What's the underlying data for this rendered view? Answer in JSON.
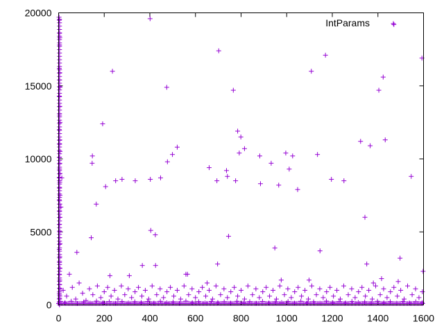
{
  "chart_data": {
    "type": "scatter",
    "title": "",
    "xlabel": "",
    "ylabel": "",
    "xlim": [
      0,
      1600
    ],
    "ylim": [
      0,
      20000
    ],
    "x_ticks": [
      0,
      200,
      400,
      600,
      800,
      1000,
      1200,
      1400,
      1600
    ],
    "y_ticks": [
      0,
      5000,
      10000,
      15000,
      20000
    ],
    "grid": false,
    "legend_position": "top-right",
    "marker": "+",
    "series": [
      {
        "name": "IntParams",
        "color": "#9400d3",
        "points": [
          [
            2,
            19700
          ],
          [
            3,
            19500
          ],
          [
            4,
            18600
          ],
          [
            5,
            18300
          ],
          [
            4,
            17800
          ],
          [
            3,
            16200
          ],
          [
            5,
            15900
          ],
          [
            4,
            15400
          ],
          [
            6,
            14900
          ],
          [
            3,
            14300
          ],
          [
            5,
            13600
          ],
          [
            4,
            13000
          ],
          [
            6,
            12500
          ],
          [
            3,
            12000
          ],
          [
            5,
            11300
          ],
          [
            4,
            11000
          ],
          [
            6,
            10500
          ],
          [
            3,
            10100
          ],
          [
            5,
            9700
          ],
          [
            4,
            9300
          ],
          [
            6,
            9000
          ],
          [
            3,
            8700
          ],
          [
            5,
            8400
          ],
          [
            4,
            8000
          ],
          [
            6,
            7500
          ],
          [
            3,
            7200
          ],
          [
            5,
            6900
          ],
          [
            4,
            6400
          ],
          [
            6,
            6000
          ],
          [
            3,
            5500
          ],
          [
            5,
            5000
          ],
          [
            4,
            4600
          ],
          [
            6,
            4200
          ],
          [
            3,
            3800
          ],
          [
            5,
            3300
          ],
          [
            4,
            2900
          ],
          [
            6,
            2500
          ],
          [
            3,
            2100
          ],
          [
            5,
            1700
          ],
          [
            4,
            1400
          ],
          [
            6,
            1100
          ],
          [
            3,
            800
          ],
          [
            5,
            600
          ],
          [
            4,
            400
          ],
          [
            6,
            250
          ],
          [
            3,
            150
          ],
          [
            5,
            80
          ],
          [
            10,
            6700
          ],
          [
            14,
            8700
          ],
          [
            47,
            2100
          ],
          [
            80,
            3600
          ],
          [
            143,
            4600
          ],
          [
            148,
            10200
          ],
          [
            147,
            9700
          ],
          [
            165,
            6900
          ],
          [
            193,
            12400
          ],
          [
            206,
            8100
          ],
          [
            225,
            2000
          ],
          [
            236,
            16000
          ],
          [
            250,
            8500
          ],
          [
            278,
            8600
          ],
          [
            310,
            2000
          ],
          [
            336,
            8500
          ],
          [
            367,
            2700
          ],
          [
            401,
            19600
          ],
          [
            402,
            8600
          ],
          [
            404,
            5100
          ],
          [
            424,
            4800
          ],
          [
            425,
            2700
          ],
          [
            447,
            8700
          ],
          [
            474,
            14900
          ],
          [
            477,
            9800
          ],
          [
            499,
            10300
          ],
          [
            520,
            10800
          ],
          [
            558,
            2100
          ],
          [
            565,
            2100
          ],
          [
            651,
            1500
          ],
          [
            660,
            9400
          ],
          [
            694,
            8500
          ],
          [
            697,
            2800
          ],
          [
            702,
            17400
          ],
          [
            736,
            9200
          ],
          [
            740,
            8800
          ],
          [
            745,
            4700
          ],
          [
            766,
            14700
          ],
          [
            776,
            8500
          ],
          [
            785,
            11900
          ],
          [
            792,
            10400
          ],
          [
            799,
            11500
          ],
          [
            815,
            10700
          ],
          [
            882,
            10200
          ],
          [
            885,
            8300
          ],
          [
            932,
            9700
          ],
          [
            948,
            3900
          ],
          [
            965,
            8200
          ],
          [
            976,
            1700
          ],
          [
            996,
            10400
          ],
          [
            1011,
            9300
          ],
          [
            1026,
            10200
          ],
          [
            1048,
            7900
          ],
          [
            1098,
            1700
          ],
          [
            1108,
            16000
          ],
          [
            1135,
            10300
          ],
          [
            1146,
            3700
          ],
          [
            1170,
            17100
          ],
          [
            1196,
            8600
          ],
          [
            1251,
            8500
          ],
          [
            1324,
            11200
          ],
          [
            1343,
            6000
          ],
          [
            1351,
            2800
          ],
          [
            1366,
            10900
          ],
          [
            1380,
            1500
          ],
          [
            1404,
            14700
          ],
          [
            1416,
            1800
          ],
          [
            1423,
            15600
          ],
          [
            1432,
            11300
          ],
          [
            1470,
            19200
          ],
          [
            1489,
            1600
          ],
          [
            1497,
            3200
          ],
          [
            1546,
            8800
          ],
          [
            1593,
            16900
          ],
          [
            1598,
            2300
          ],
          [
            20,
            1000
          ],
          [
            35,
            600
          ],
          [
            60,
            1200
          ],
          [
            75,
            400
          ],
          [
            90,
            1500
          ],
          [
            105,
            800
          ],
          [
            120,
            300
          ],
          [
            135,
            1100
          ],
          [
            150,
            700
          ],
          [
            170,
            1300
          ],
          [
            185,
            500
          ],
          [
            200,
            900
          ],
          [
            215,
            1200
          ],
          [
            230,
            600
          ],
          [
            245,
            1000
          ],
          [
            260,
            400
          ],
          [
            275,
            1300
          ],
          [
            290,
            700
          ],
          [
            305,
            1100
          ],
          [
            320,
            500
          ],
          [
            335,
            900
          ],
          [
            350,
            1200
          ],
          [
            365,
            600
          ],
          [
            380,
            1000
          ],
          [
            395,
            400
          ],
          [
            410,
            1300
          ],
          [
            430,
            700
          ],
          [
            445,
            1100
          ],
          [
            460,
            500
          ],
          [
            475,
            900
          ],
          [
            490,
            1200
          ],
          [
            505,
            600
          ],
          [
            520,
            1000
          ],
          [
            535,
            400
          ],
          [
            550,
            1300
          ],
          [
            570,
            700
          ],
          [
            585,
            1100
          ],
          [
            600,
            500
          ],
          [
            615,
            900
          ],
          [
            630,
            1200
          ],
          [
            645,
            600
          ],
          [
            660,
            1000
          ],
          [
            675,
            400
          ],
          [
            690,
            1300
          ],
          [
            710,
            700
          ],
          [
            725,
            1100
          ],
          [
            740,
            500
          ],
          [
            755,
            900
          ],
          [
            770,
            1200
          ],
          [
            785,
            600
          ],
          [
            800,
            1000
          ],
          [
            815,
            400
          ],
          [
            830,
            1300
          ],
          [
            850,
            700
          ],
          [
            865,
            1100
          ],
          [
            880,
            500
          ],
          [
            895,
            900
          ],
          [
            910,
            1200
          ],
          [
            925,
            600
          ],
          [
            940,
            1000
          ],
          [
            955,
            400
          ],
          [
            970,
            1300
          ],
          [
            990,
            700
          ],
          [
            1005,
            1100
          ],
          [
            1020,
            500
          ],
          [
            1035,
            900
          ],
          [
            1050,
            1200
          ],
          [
            1065,
            600
          ],
          [
            1080,
            1000
          ],
          [
            1095,
            400
          ],
          [
            1110,
            1300
          ],
          [
            1130,
            700
          ],
          [
            1145,
            1100
          ],
          [
            1160,
            500
          ],
          [
            1175,
            900
          ],
          [
            1190,
            1200
          ],
          [
            1205,
            600
          ],
          [
            1220,
            1000
          ],
          [
            1235,
            400
          ],
          [
            1250,
            1300
          ],
          [
            1270,
            700
          ],
          [
            1285,
            1100
          ],
          [
            1300,
            500
          ],
          [
            1315,
            900
          ],
          [
            1330,
            1200
          ],
          [
            1345,
            600
          ],
          [
            1360,
            1000
          ],
          [
            1375,
            400
          ],
          [
            1390,
            1300
          ],
          [
            1410,
            700
          ],
          [
            1425,
            1100
          ],
          [
            1440,
            500
          ],
          [
            1455,
            900
          ],
          [
            1470,
            1200
          ],
          [
            1485,
            600
          ],
          [
            1500,
            1000
          ],
          [
            1515,
            400
          ],
          [
            1530,
            1300
          ],
          [
            1550,
            700
          ],
          [
            1565,
            1100
          ],
          [
            1580,
            500
          ],
          [
            1595,
            900
          ],
          [
            28,
            150
          ],
          [
            55,
            250
          ],
          [
            82,
            100
          ],
          [
            110,
            200
          ],
          [
            138,
            120
          ],
          [
            166,
            260
          ],
          [
            194,
            140
          ],
          [
            222,
            220
          ],
          [
            250,
            110
          ],
          [
            278,
            240
          ],
          [
            306,
            130
          ],
          [
            334,
            210
          ],
          [
            362,
            160
          ],
          [
            390,
            230
          ],
          [
            418,
            120
          ],
          [
            446,
            250
          ],
          [
            474,
            140
          ],
          [
            502,
            200
          ],
          [
            530,
            110
          ],
          [
            558,
            260
          ],
          [
            586,
            150
          ],
          [
            614,
            220
          ],
          [
            642,
            130
          ],
          [
            670,
            240
          ],
          [
            698,
            160
          ],
          [
            726,
            210
          ],
          [
            754,
            120
          ],
          [
            782,
            250
          ],
          [
            810,
            140
          ],
          [
            838,
            220
          ],
          [
            866,
            110
          ],
          [
            894,
            240
          ],
          [
            922,
            130
          ],
          [
            950,
            200
          ],
          [
            978,
            160
          ],
          [
            1006,
            230
          ],
          [
            1034,
            120
          ],
          [
            1062,
            250
          ],
          [
            1090,
            140
          ],
          [
            1118,
            210
          ],
          [
            1146,
            110
          ],
          [
            1174,
            260
          ],
          [
            1202,
            150
          ],
          [
            1230,
            220
          ],
          [
            1258,
            130
          ],
          [
            1286,
            240
          ],
          [
            1314,
            160
          ],
          [
            1342,
            200
          ],
          [
            1370,
            120
          ],
          [
            1398,
            250
          ],
          [
            1426,
            140
          ],
          [
            1454,
            220
          ],
          [
            1482,
            110
          ],
          [
            1510,
            240
          ],
          [
            1538,
            130
          ],
          [
            1566,
            210
          ],
          [
            1594,
            160
          ]
        ]
      }
    ]
  }
}
